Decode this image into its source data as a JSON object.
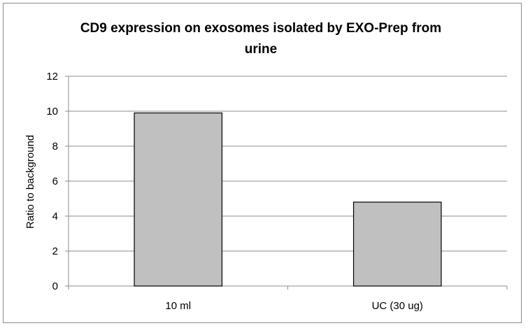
{
  "chart_data": {
    "type": "bar",
    "title_line1": "CD9 expression on exosomes isolated by EXO-Prep from",
    "title_line2": "urine",
    "xlabel": "",
    "ylabel": "Ratio to background",
    "categories": [
      "10 ml",
      "UC (30 ug)"
    ],
    "values": [
      9.9,
      4.8
    ],
    "ylim": [
      0,
      12
    ],
    "yticks": [
      "0",
      "2",
      "4",
      "6",
      "8",
      "10",
      "12"
    ],
    "grid": true,
    "legend": "none",
    "bar_color": "#c0c0c0",
    "bar_stroke": "#000000",
    "grid_color": "#8c8c8c"
  }
}
